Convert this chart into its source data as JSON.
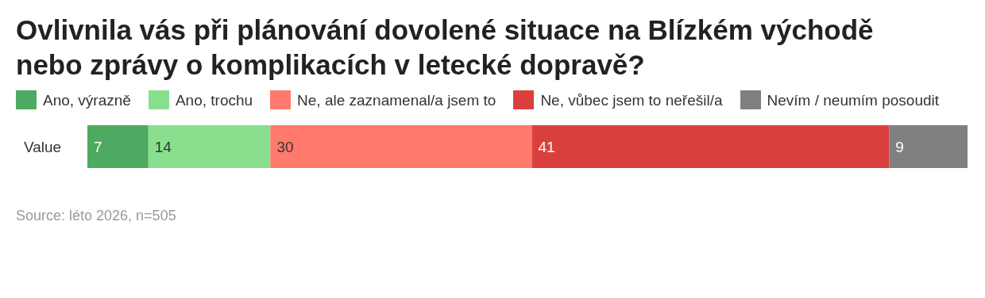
{
  "chart_data": {
    "type": "bar",
    "title": "Ovlivnila vás při plánování dovolené situace na Blízkém východě nebo zprávy o komplikacích v letecké dopravě?",
    "orientation": "horizontal",
    "stacked": true,
    "categories": [
      "Value"
    ],
    "legend": "top",
    "data_labels": true,
    "annotations": [
      "Source: léto 2026, n=505"
    ],
    "series": [
      {
        "name": "Ano, výrazně",
        "color": "#4daa60",
        "values": [
          7
        ]
      },
      {
        "name": "Ano, trochu",
        "color": "#88e08e",
        "values": [
          14
        ]
      },
      {
        "name": "Ne, ale zaznamenal/a jsem to",
        "color": "#ff7a6c",
        "values": [
          30
        ]
      },
      {
        "name": "Ne, vůbec jsem to neřešil/a",
        "color": "#d9403d",
        "values": [
          41
        ]
      },
      {
        "name": "Nevím / neumím posoudit",
        "color": "#808080",
        "values": [
          9
        ]
      }
    ]
  }
}
